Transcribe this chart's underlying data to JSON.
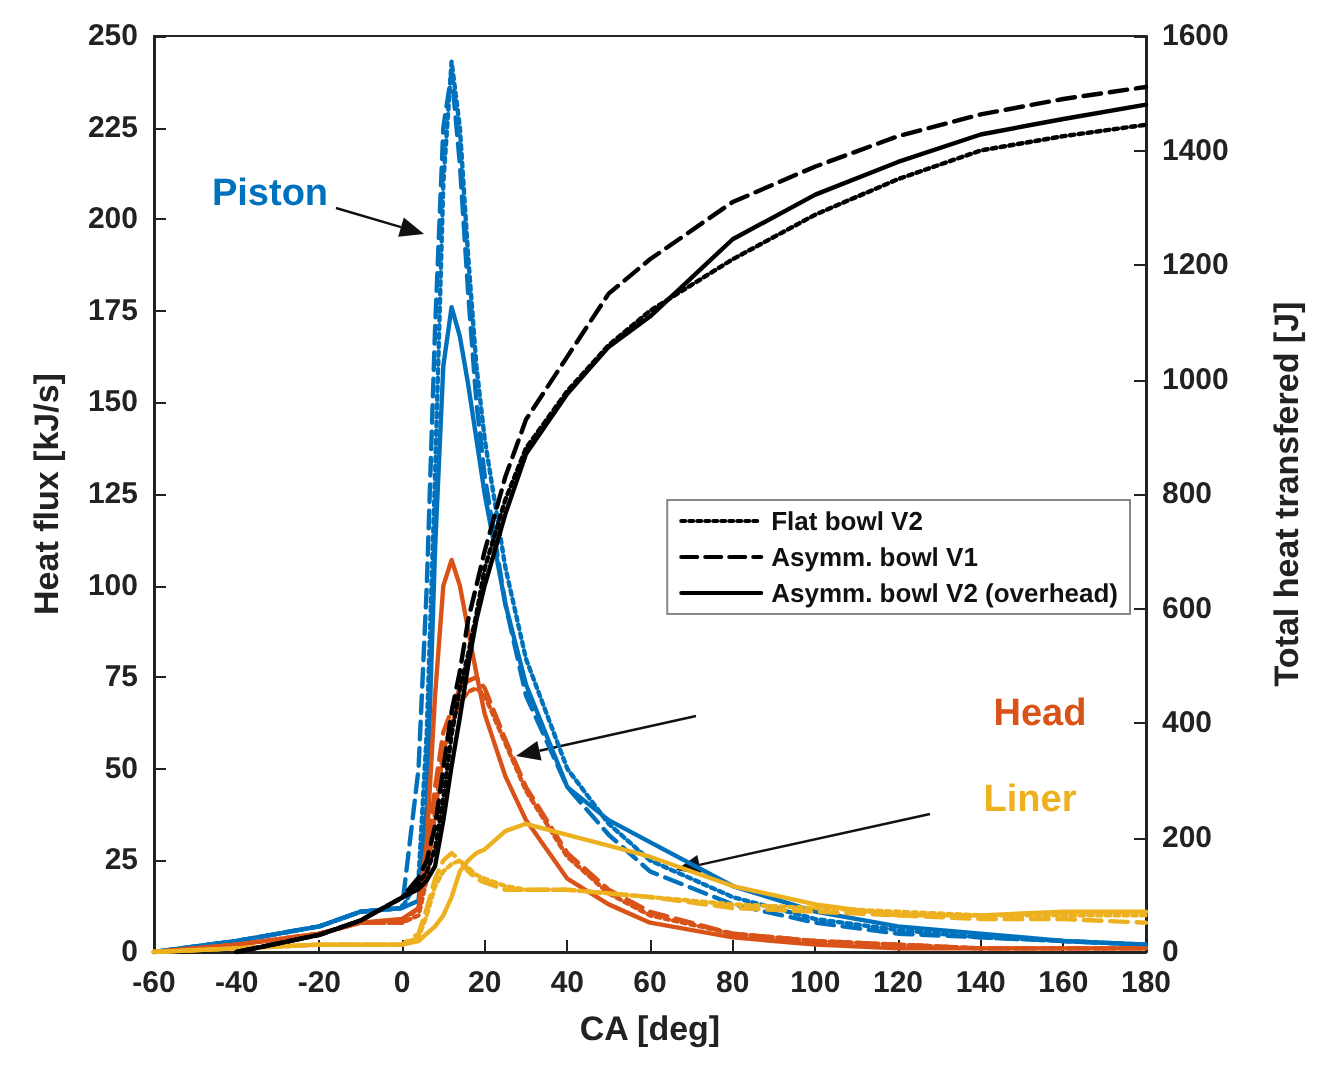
{
  "chart_data": {
    "type": "line",
    "xlabel": "CA [deg]",
    "ylabel": "Heat flux [kJ/s]",
    "y2label": "Total heat transfered [J]",
    "x": [
      -60,
      -40,
      -20,
      -10,
      0,
      4,
      6,
      8,
      10,
      12,
      14,
      16,
      18,
      20,
      25,
      30,
      40,
      50,
      60,
      80,
      100,
      120,
      140,
      160,
      180
    ],
    "xlim": [
      -60,
      180
    ],
    "xticks": [
      -60,
      -40,
      -20,
      0,
      20,
      40,
      60,
      80,
      100,
      120,
      140,
      160,
      180
    ],
    "ylim": [
      0,
      250
    ],
    "yticks": [
      0,
      25,
      50,
      75,
      100,
      125,
      150,
      175,
      200,
      225,
      250
    ],
    "y2lim": [
      0,
      1600
    ],
    "y2ticks": [
      0,
      200,
      400,
      600,
      800,
      1000,
      1200,
      1400,
      1600
    ],
    "legend": "right",
    "series": [
      {
        "color": "#0072bd",
        "line_style": "dotted",
        "values": [
          0,
          3,
          7,
          11,
          12,
          20,
          60,
          130,
          210,
          243,
          225,
          190,
          160,
          140,
          105,
          80,
          50,
          35,
          25,
          15,
          9,
          6,
          4,
          3,
          2
        ]
      },
      {
        "color": "#0072bd",
        "line_style": "dashed",
        "values": [
          0,
          3,
          7,
          11,
          12,
          50,
          100,
          170,
          225,
          240,
          215,
          180,
          150,
          130,
          95,
          70,
          45,
          32,
          22,
          13,
          8,
          5,
          4,
          3,
          2
        ]
      },
      {
        "color": "#0072bd",
        "line_style": "solid",
        "values": [
          0,
          3,
          7,
          11,
          12,
          14,
          40,
          110,
          160,
          176,
          168,
          155,
          140,
          125,
          95,
          73,
          45,
          36,
          30,
          18,
          11,
          7,
          5,
          3,
          2
        ]
      },
      {
        "color": "#d95319",
        "line_style": "dotted",
        "values": [
          0,
          2,
          5,
          8,
          8,
          10,
          20,
          38,
          55,
          62,
          68,
          71,
          72,
          70,
          57,
          44,
          26,
          16,
          10,
          5,
          3,
          2,
          1,
          1,
          1
        ]
      },
      {
        "color": "#d95319",
        "line_style": "dashed",
        "values": [
          0,
          2,
          5,
          8,
          8,
          12,
          25,
          45,
          60,
          66,
          72,
          74,
          75,
          72,
          58,
          45,
          27,
          17,
          11,
          5,
          3,
          2,
          1,
          1,
          1
        ]
      },
      {
        "color": "#d95319",
        "line_style": "solid",
        "values": [
          0,
          2,
          5,
          8,
          9,
          12,
          30,
          70,
          100,
          107,
          100,
          88,
          76,
          65,
          48,
          36,
          20,
          13,
          8,
          4,
          2,
          1,
          1,
          1,
          1
        ]
      },
      {
        "color": "#edb120",
        "line_style": "dotted",
        "values": [
          0,
          1,
          2,
          2,
          2,
          4,
          10,
          18,
          22,
          24,
          25,
          23,
          21,
          20,
          18,
          17,
          17,
          16,
          15,
          13,
          12,
          11,
          10,
          10,
          10
        ]
      },
      {
        "color": "#edb120",
        "line_style": "dashed",
        "values": [
          0,
          1,
          2,
          2,
          2,
          5,
          12,
          20,
          25,
          27,
          25,
          22,
          20,
          19,
          17,
          17,
          17,
          16,
          15,
          12,
          11,
          10,
          9,
          9,
          8
        ]
      },
      {
        "color": "#edb120",
        "line_style": "solid",
        "values": [
          0,
          1,
          2,
          2,
          2,
          3,
          5,
          7,
          10,
          15,
          22,
          25,
          27,
          28,
          33,
          35,
          32,
          29,
          26,
          18,
          13,
          10,
          10,
          11,
          11
        ]
      },
      {
        "name": "Flat bowl V2",
        "color": "#000000",
        "line_style": "dotted",
        "axis": "y2",
        "values": [
          null,
          0,
          30,
          55,
          95,
          120,
          140,
          180,
          270,
          380,
          460,
          520,
          590,
          670,
          790,
          880,
          980,
          1060,
          1120,
          1210,
          1288,
          1350,
          1400,
          1425,
          1445
        ]
      },
      {
        "name": "Asymm. bowl V1",
        "color": "#000000",
        "line_style": "dashed",
        "axis": "y2",
        "values": [
          null,
          0,
          30,
          55,
          95,
          130,
          160,
          220,
          320,
          420,
          490,
          580,
          640,
          700,
          830,
          930,
          1040,
          1150,
          1210,
          1310,
          1372,
          1425,
          1463,
          1490,
          1511
        ]
      },
      {
        "name": "Asymm. bowl V2 (overhead)",
        "color": "#000000",
        "line_style": "solid",
        "axis": "y2",
        "values": [
          null,
          0,
          30,
          55,
          95,
          110,
          125,
          150,
          230,
          325,
          410,
          500,
          580,
          640,
          765,
          870,
          975,
          1057,
          1110,
          1245,
          1323,
          1380,
          1428,
          1455,
          1480
        ]
      }
    ],
    "annotations": [
      "Piston",
      "Head",
      "Liner"
    ]
  }
}
